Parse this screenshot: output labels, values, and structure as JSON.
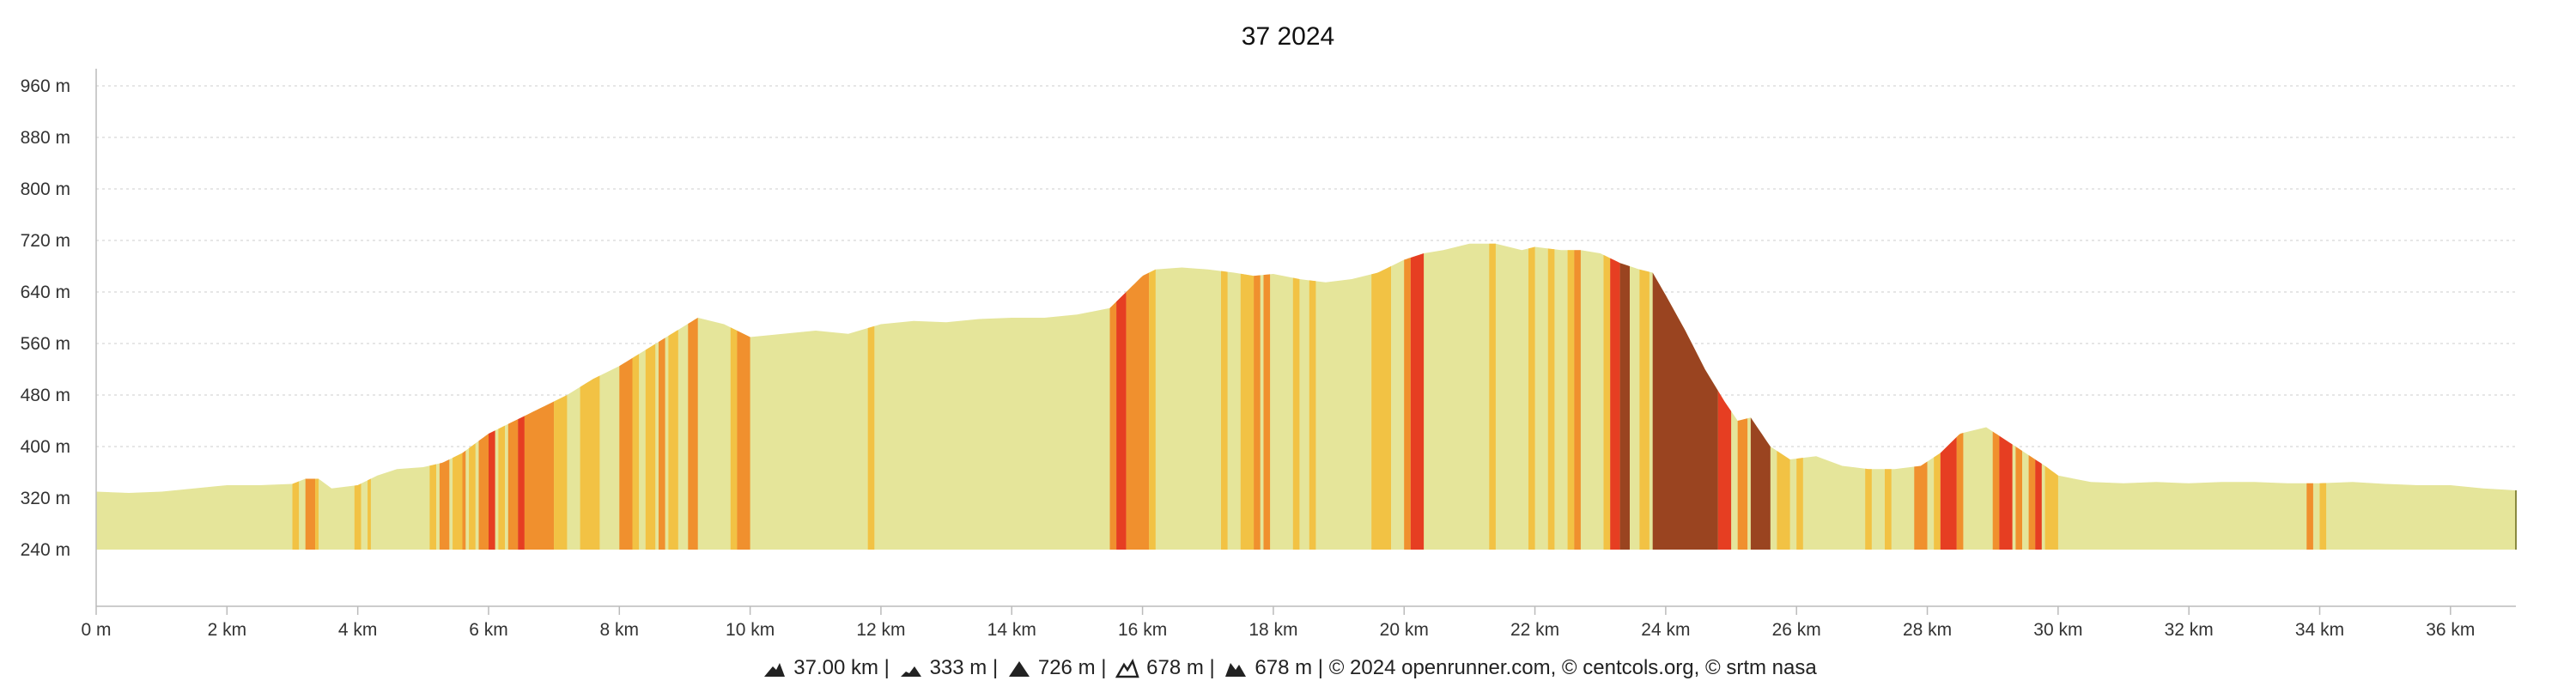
{
  "chart_data": {
    "type": "area",
    "title": "37 2024",
    "xlabel": "",
    "ylabel": "",
    "xlim": [
      0,
      37
    ],
    "ylim": [
      240,
      1000
    ],
    "y_baseline": 240,
    "x_ticks": [
      0,
      2,
      4,
      6,
      8,
      10,
      12,
      14,
      16,
      18,
      20,
      22,
      24,
      26,
      28,
      30,
      32,
      34,
      36
    ],
    "x_tick_labels": [
      "0 m",
      "2 km",
      "4 km",
      "6 km",
      "8 km",
      "10 km",
      "12 km",
      "14 km",
      "16 km",
      "18 km",
      "20 km",
      "22 km",
      "24 km",
      "26 km",
      "28 km",
      "30 km",
      "32 km",
      "34 km",
      "36 km"
    ],
    "y_ticks": [
      240,
      320,
      400,
      480,
      560,
      640,
      720,
      800,
      880,
      960
    ],
    "y_tick_labels": [
      "240 m",
      "320 m",
      "400 m",
      "480 m",
      "560 m",
      "640 m",
      "720 m",
      "800 m",
      "880 m",
      "960 m"
    ],
    "grid": true,
    "legend": "none",
    "elevation_profile": {
      "x": [
        0,
        0.5,
        1,
        1.5,
        2,
        2.5,
        3,
        3.2,
        3.4,
        3.6,
        4,
        4.3,
        4.6,
        5,
        5.3,
        5.6,
        6,
        6.4,
        6.8,
        7.2,
        7.6,
        8,
        8.4,
        8.8,
        9.2,
        9.6,
        10,
        10.5,
        11,
        11.5,
        12,
        12.5,
        13,
        13.5,
        14,
        14.5,
        15,
        15.5,
        15.8,
        16,
        16.2,
        16.6,
        17,
        17.4,
        17.7,
        18,
        18.4,
        18.8,
        19.2,
        19.6,
        20,
        20.3,
        20.6,
        21,
        21.4,
        21.8,
        22,
        22.4,
        22.7,
        23,
        23.3,
        23.6,
        23.8,
        24,
        24.3,
        24.6,
        24.9,
        25.1,
        25.3,
        25.6,
        25.9,
        26.3,
        26.7,
        27.1,
        27.5,
        27.9,
        28.2,
        28.5,
        28.9,
        29.2,
        29.5,
        29.8,
        30,
        30.5,
        31,
        31.5,
        32,
        32.5,
        33,
        33.5,
        34,
        34.5,
        35,
        35.5,
        36,
        36.5,
        37
      ],
      "y": [
        330,
        328,
        330,
        335,
        340,
        340,
        342,
        350,
        350,
        335,
        340,
        355,
        365,
        368,
        375,
        390,
        420,
        440,
        460,
        480,
        505,
        525,
        550,
        575,
        600,
        590,
        570,
        575,
        580,
        575,
        590,
        595,
        593,
        598,
        600,
        600,
        605,
        615,
        645,
        665,
        675,
        678,
        675,
        670,
        665,
        668,
        660,
        655,
        660,
        670,
        690,
        700,
        705,
        715,
        715,
        705,
        710,
        705,
        705,
        700,
        685,
        675,
        670,
        635,
        580,
        520,
        470,
        440,
        445,
        400,
        380,
        385,
        370,
        365,
        365,
        370,
        390,
        420,
        430,
        410,
        390,
        370,
        355,
        345,
        343,
        345,
        343,
        345,
        345,
        343,
        343,
        345,
        342,
        340,
        340,
        335,
        332
      ],
      "unit_x": "km",
      "unit_y": "m"
    },
    "grade_bands": [
      {
        "from": 3.0,
        "to": 3.1,
        "grade": "low"
      },
      {
        "from": 3.2,
        "to": 3.35,
        "grade": "medium"
      },
      {
        "from": 3.35,
        "to": 3.4,
        "grade": "low"
      },
      {
        "from": 3.95,
        "to": 4.05,
        "grade": "low"
      },
      {
        "from": 4.15,
        "to": 4.2,
        "grade": "low"
      },
      {
        "from": 5.1,
        "to": 5.2,
        "grade": "low"
      },
      {
        "from": 5.25,
        "to": 5.4,
        "grade": "medium"
      },
      {
        "from": 5.45,
        "to": 5.6,
        "grade": "low"
      },
      {
        "from": 5.6,
        "to": 5.65,
        "grade": "medium"
      },
      {
        "from": 5.7,
        "to": 5.8,
        "grade": "low"
      },
      {
        "from": 5.85,
        "to": 6.0,
        "grade": "medium"
      },
      {
        "from": 6.0,
        "to": 6.1,
        "grade": "high"
      },
      {
        "from": 6.15,
        "to": 6.25,
        "grade": "low"
      },
      {
        "from": 6.3,
        "to": 6.45,
        "grade": "medium"
      },
      {
        "from": 6.45,
        "to": 6.55,
        "grade": "high"
      },
      {
        "from": 6.55,
        "to": 7.0,
        "grade": "medium"
      },
      {
        "from": 7.0,
        "to": 7.2,
        "grade": "low"
      },
      {
        "from": 7.4,
        "to": 7.7,
        "grade": "low"
      },
      {
        "from": 8.0,
        "to": 8.2,
        "grade": "medium"
      },
      {
        "from": 8.2,
        "to": 8.3,
        "grade": "low"
      },
      {
        "from": 8.4,
        "to": 8.55,
        "grade": "low"
      },
      {
        "from": 8.6,
        "to": 8.7,
        "grade": "medium"
      },
      {
        "from": 8.75,
        "to": 8.9,
        "grade": "low"
      },
      {
        "from": 9.05,
        "to": 9.2,
        "grade": "medium"
      },
      {
        "from": 9.7,
        "to": 9.8,
        "grade": "low"
      },
      {
        "from": 9.8,
        "to": 10.0,
        "grade": "medium"
      },
      {
        "from": 11.8,
        "to": 11.9,
        "grade": "low"
      },
      {
        "from": 15.5,
        "to": 15.6,
        "grade": "medium"
      },
      {
        "from": 15.6,
        "to": 15.75,
        "grade": "high"
      },
      {
        "from": 15.75,
        "to": 16.1,
        "grade": "medium"
      },
      {
        "from": 16.1,
        "to": 16.2,
        "grade": "low"
      },
      {
        "from": 17.2,
        "to": 17.3,
        "grade": "low"
      },
      {
        "from": 17.5,
        "to": 17.7,
        "grade": "low"
      },
      {
        "from": 17.7,
        "to": 17.8,
        "grade": "medium"
      },
      {
        "from": 17.85,
        "to": 17.95,
        "grade": "medium"
      },
      {
        "from": 18.3,
        "to": 18.4,
        "grade": "low"
      },
      {
        "from": 18.55,
        "to": 18.65,
        "grade": "low"
      },
      {
        "from": 19.5,
        "to": 19.8,
        "grade": "low"
      },
      {
        "from": 20.0,
        "to": 20.1,
        "grade": "medium"
      },
      {
        "from": 20.1,
        "to": 20.3,
        "grade": "high"
      },
      {
        "from": 21.3,
        "to": 21.4,
        "grade": "low"
      },
      {
        "from": 21.9,
        "to": 22.0,
        "grade": "low"
      },
      {
        "from": 22.2,
        "to": 22.3,
        "grade": "low"
      },
      {
        "from": 22.5,
        "to": 22.6,
        "grade": "low"
      },
      {
        "from": 22.6,
        "to": 22.7,
        "grade": "medium"
      },
      {
        "from": 23.05,
        "to": 23.15,
        "grade": "low"
      },
      {
        "from": 23.15,
        "to": 23.3,
        "grade": "high"
      },
      {
        "from": 23.3,
        "to": 23.45,
        "grade": "very_high"
      },
      {
        "from": 23.6,
        "to": 23.75,
        "grade": "low"
      },
      {
        "from": 23.8,
        "to": 24.8,
        "grade": "very_high"
      },
      {
        "from": 24.8,
        "to": 25.0,
        "grade": "high"
      },
      {
        "from": 25.1,
        "to": 25.25,
        "grade": "medium"
      },
      {
        "from": 25.3,
        "to": 25.6,
        "grade": "very_high"
      },
      {
        "from": 25.7,
        "to": 25.9,
        "grade": "low"
      },
      {
        "from": 26.0,
        "to": 26.1,
        "grade": "low"
      },
      {
        "from": 27.05,
        "to": 27.15,
        "grade": "low"
      },
      {
        "from": 27.35,
        "to": 27.45,
        "grade": "low"
      },
      {
        "from": 27.8,
        "to": 28.0,
        "grade": "medium"
      },
      {
        "from": 28.1,
        "to": 28.2,
        "grade": "low"
      },
      {
        "from": 28.2,
        "to": 28.45,
        "grade": "high"
      },
      {
        "from": 28.45,
        "to": 28.55,
        "grade": "medium"
      },
      {
        "from": 29.0,
        "to": 29.1,
        "grade": "medium"
      },
      {
        "from": 29.1,
        "to": 29.3,
        "grade": "high"
      },
      {
        "from": 29.35,
        "to": 29.45,
        "grade": "medium"
      },
      {
        "from": 29.55,
        "to": 29.65,
        "grade": "medium"
      },
      {
        "from": 29.65,
        "to": 29.75,
        "grade": "high"
      },
      {
        "from": 29.8,
        "to": 30.0,
        "grade": "low"
      },
      {
        "from": 33.8,
        "to": 33.9,
        "grade": "medium"
      },
      {
        "from": 34.0,
        "to": 34.1,
        "grade": "low"
      }
    ],
    "colors": {
      "flat": "#e5e59a",
      "low": "#f2c244",
      "medium": "#f0902e",
      "high": "#e63e22",
      "very_high": "#9a4420",
      "axis": "#bbbbbb",
      "grid": "#dddddd"
    }
  },
  "footer": {
    "distance": "37.00 km",
    "min_elevation": "333 m",
    "max_elevation": "726 m",
    "ascent": "678 m",
    "descent": "678 m",
    "separator": " | ",
    "credits": "© 2024 openrunner.com, © centcols.org, © srtm nasa",
    "icons": [
      "distance-icon",
      "min-elevation-icon",
      "max-elevation-icon",
      "ascent-icon",
      "descent-icon"
    ]
  }
}
